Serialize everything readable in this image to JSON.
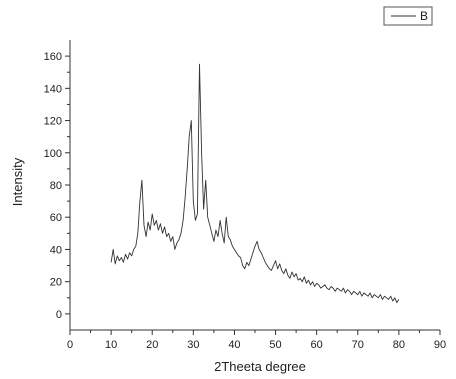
{
  "chart_data": {
    "type": "line",
    "xlabel": "2Theeta degree",
    "ylabel": "Intensity",
    "xlim": [
      0,
      90
    ],
    "ylim": [
      -10,
      170
    ],
    "xticks": [
      0,
      10,
      20,
      30,
      40,
      50,
      60,
      70,
      80,
      90
    ],
    "yticks": [
      0,
      20,
      40,
      60,
      80,
      100,
      120,
      140,
      160
    ],
    "grid": false,
    "legend_position": "top-right",
    "line_color": "#333333",
    "series": [
      {
        "name": "B",
        "x": [
          10,
          10.5,
          11,
          11.5,
          12,
          12.5,
          13,
          13.5,
          14,
          14.5,
          15,
          15.5,
          16,
          16.5,
          17,
          17.5,
          18,
          18.5,
          19,
          19.5,
          20,
          20.5,
          21,
          21.5,
          22,
          22.5,
          23,
          23.5,
          24,
          24.5,
          25,
          25.5,
          26,
          26.5,
          27,
          27.5,
          28,
          28.5,
          29,
          29.5,
          30,
          30.5,
          31,
          31.5,
          32,
          32.5,
          33,
          33.5,
          34,
          34.5,
          35,
          35.5,
          36,
          36.5,
          37,
          37.5,
          38,
          38.5,
          39,
          39.5,
          40,
          40.5,
          41,
          41.5,
          42,
          42.5,
          43,
          43.5,
          44,
          44.5,
          45,
          45.5,
          46,
          46.5,
          47,
          47.5,
          48,
          48.5,
          49,
          49.5,
          50,
          50.5,
          51,
          51.5,
          52,
          52.5,
          53,
          53.5,
          54,
          54.5,
          55,
          55.5,
          56,
          56.5,
          57,
          57.5,
          58,
          58.5,
          59,
          59.5,
          60,
          60.5,
          61,
          61.5,
          62,
          62.5,
          63,
          63.5,
          64,
          64.5,
          65,
          65.5,
          66,
          66.5,
          67,
          67.5,
          68,
          68.5,
          69,
          69.5,
          70,
          70.5,
          71,
          71.5,
          72,
          72.5,
          73,
          73.5,
          74,
          74.5,
          75,
          75.5,
          76,
          76.5,
          77,
          77.5,
          78,
          78.5,
          79,
          79.5,
          80
        ],
        "y": [
          32,
          40,
          31,
          36,
          33,
          35,
          32,
          37,
          34,
          38,
          36,
          40,
          42,
          50,
          70,
          83,
          55,
          48,
          57,
          52,
          62,
          55,
          58,
          52,
          56,
          50,
          54,
          48,
          50,
          45,
          48,
          40,
          44,
          46,
          50,
          58,
          72,
          90,
          110,
          120,
          70,
          58,
          62,
          155,
          100,
          65,
          83,
          60,
          55,
          50,
          45,
          52,
          48,
          58,
          50,
          44,
          60,
          48,
          46,
          42,
          40,
          38,
          36,
          35,
          30,
          28,
          32,
          30,
          34,
          38,
          42,
          45,
          40,
          38,
          35,
          32,
          30,
          28,
          27,
          30,
          33,
          28,
          31,
          27,
          25,
          28,
          24,
          22,
          26,
          23,
          25,
          21,
          22,
          20,
          23,
          19,
          21,
          18,
          20,
          17,
          19,
          18,
          16,
          17,
          18,
          16,
          15,
          17,
          16,
          14,
          16,
          15,
          14,
          16,
          13,
          15,
          14,
          12,
          14,
          13,
          12,
          14,
          11,
          13,
          12,
          11,
          13,
          10,
          12,
          11,
          10,
          12,
          9,
          11,
          10,
          9,
          11,
          8,
          10,
          7,
          9
        ]
      }
    ]
  }
}
